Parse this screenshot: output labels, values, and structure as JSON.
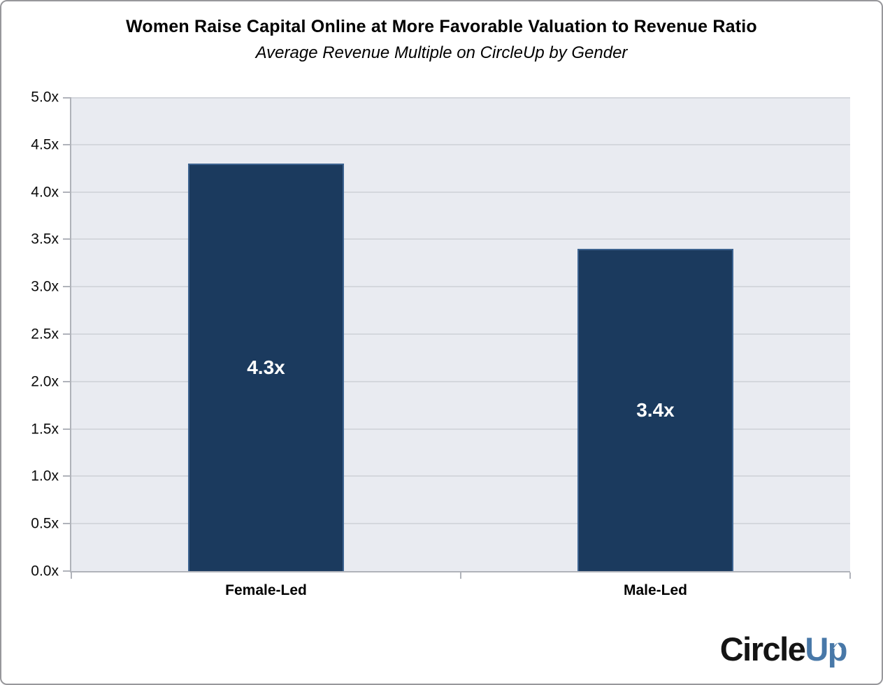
{
  "page": {
    "title": "Women Raise Capital Online at More Favorable Valuation to Revenue Ratio",
    "subtitle": "Average Revenue Multiple on CircleUp by Gender"
  },
  "chart_data": {
    "type": "bar",
    "title": "Women Raise Capital Online at More Favorable Valuation to Revenue Ratio",
    "subtitle": "Average Revenue Multiple on CircleUp by Gender",
    "categories": [
      "Female-Led",
      "Male-Led"
    ],
    "values": [
      4.3,
      3.4
    ],
    "data_labels": [
      "4.3x",
      "3.4x"
    ],
    "xlabel": "",
    "ylabel": "",
    "ylim": [
      0,
      5
    ],
    "y_tick_step": 0.5,
    "y_tick_labels": [
      "0.0x",
      "0.5x",
      "1.0x",
      "1.5x",
      "2.0x",
      "2.5x",
      "3.0x",
      "3.5x",
      "4.0x",
      "4.5x",
      "5.0x"
    ],
    "grid": true,
    "legend": false,
    "colors": {
      "bar_fill": "#1b3a5e",
      "bar_border": "#3d6390",
      "plot_background": "#e9ebf1",
      "gridline": "#d4d7dd",
      "axis": "#b0b3ba",
      "data_label": "#ffffff"
    }
  },
  "logo": {
    "text_black": "Circle",
    "text_blue": "Up",
    "blue": "#4878a8"
  }
}
